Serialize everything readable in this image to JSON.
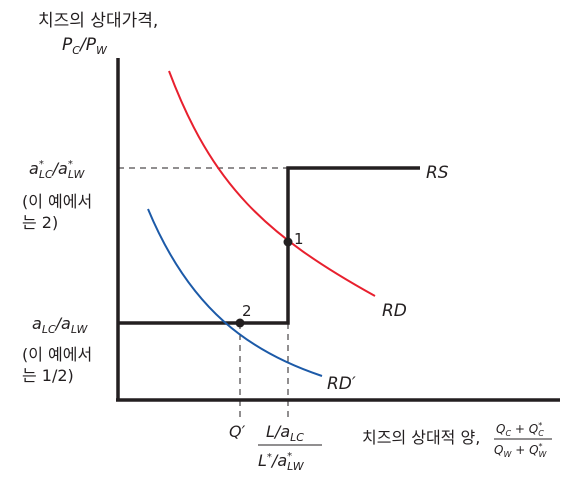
{
  "y_axis": {
    "title_line1": "치즈의 상대가격,",
    "title_line2_P1": "P",
    "title_line2_sub1": "C",
    "title_line2_slash": "/",
    "title_line2_P2": "P",
    "title_line2_sub2": "W"
  },
  "upper_level": {
    "a1": "a",
    "a1_sup": "*",
    "a1_sub": "LC",
    "slash": "/",
    "a2": "a",
    "a2_sup": "*",
    "a2_sub": "LW",
    "note_line1": "(이 예에서",
    "note_line2": "는 2)"
  },
  "lower_level": {
    "a1": "a",
    "a1_sub": "LC",
    "slash": "/",
    "a2": "a",
    "a2_sub": "LW",
    "note_line1": "(이 예에서",
    "note_line2": "는 1/2)"
  },
  "x_axis": {
    "title_text": "치즈의 상대적 양,",
    "frac_num": "Q",
    "frac_num_sub1": "C",
    "frac_num_plus": " + ",
    "frac_num_Q2": "Q",
    "frac_num_sup2": "*",
    "frac_num_sub2": "C",
    "frac_den": "Q",
    "frac_den_sub1": "W",
    "frac_den_plus": " + ",
    "frac_den_Q2": "Q",
    "frac_den_sup2": "*",
    "frac_den_sub2": "W"
  },
  "x_ticks": {
    "q_prime": "Q′",
    "l_num_L": "L",
    "l_num_slash": "/",
    "l_num_a": "a",
    "l_num_sub": "LC",
    "l_den_L": "L",
    "l_den_star": "*",
    "l_den_slash": "/",
    "l_den_a": "a",
    "l_den_sup": "*",
    "l_den_sub": "LW"
  },
  "curve_labels": {
    "rs": "RS",
    "rd": "RD",
    "rd_prime": "RD′"
  },
  "points": {
    "p1": "1",
    "p2": "2"
  },
  "colors": {
    "axis": "#231f20",
    "rd": "#e8202e",
    "rd_prime": "#1c5aa8",
    "rs": "#231f20",
    "dashed": "#231f20"
  }
}
